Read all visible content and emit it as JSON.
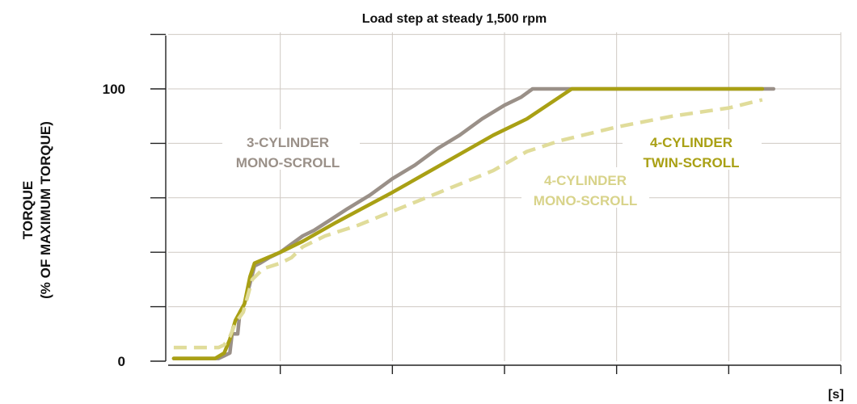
{
  "chart_data": {
    "type": "line",
    "title": "Load step at steady 1,500 rpm",
    "ylabel_lines": [
      "TORQUE",
      "(% OF MAXIMUM TORQUE)"
    ],
    "xlabel": "",
    "x_unit": "[s]",
    "xlim": [
      0,
      6
    ],
    "ylim": [
      0,
      120
    ],
    "yticks": [
      0,
      20,
      40,
      60,
      80,
      100,
      120
    ],
    "ytick_labels": [
      {
        "value": 0,
        "label": "0"
      },
      {
        "value": 100,
        "label": "100"
      }
    ],
    "grid": true,
    "series": [
      {
        "name": "3-CYLINDER MONO-SCROLL",
        "label_lines": [
          "3-CYLINDER",
          "MONO-SCROLL"
        ],
        "color": "#9a9088",
        "style": "solid",
        "points": [
          [
            0.05,
            1
          ],
          [
            0.45,
            1
          ],
          [
            0.5,
            2
          ],
          [
            0.55,
            3
          ],
          [
            0.57,
            10
          ],
          [
            0.62,
            10
          ],
          [
            0.64,
            18
          ],
          [
            0.68,
            21
          ],
          [
            0.72,
            27
          ],
          [
            0.77,
            35
          ],
          [
            0.82,
            36
          ],
          [
            0.9,
            38
          ],
          [
            1.0,
            40
          ],
          [
            1.1,
            43
          ],
          [
            1.2,
            46
          ],
          [
            1.3,
            48
          ],
          [
            1.45,
            52
          ],
          [
            1.6,
            56
          ],
          [
            1.8,
            61
          ],
          [
            2.0,
            67
          ],
          [
            2.2,
            72
          ],
          [
            2.4,
            78
          ],
          [
            2.6,
            83
          ],
          [
            2.8,
            89
          ],
          [
            3.0,
            94
          ],
          [
            3.15,
            97
          ],
          [
            3.25,
            100
          ],
          [
            3.6,
            100
          ],
          [
            5.4,
            100
          ]
        ]
      },
      {
        "name": "4-CYLINDER TWIN-SCROLL",
        "label_lines": [
          "4-CYLINDER",
          "TWIN-SCROLL"
        ],
        "color": "#a9a014",
        "style": "solid",
        "points": [
          [
            0.05,
            1
          ],
          [
            0.42,
            1
          ],
          [
            0.5,
            3
          ],
          [
            0.55,
            8
          ],
          [
            0.6,
            15
          ],
          [
            0.68,
            21
          ],
          [
            0.73,
            31
          ],
          [
            0.77,
            36
          ],
          [
            1.0,
            40
          ],
          [
            1.2,
            44
          ],
          [
            1.5,
            51
          ],
          [
            2.0,
            62
          ],
          [
            2.3,
            69
          ],
          [
            2.6,
            76
          ],
          [
            2.9,
            83
          ],
          [
            3.2,
            89
          ],
          [
            3.6,
            100
          ],
          [
            4.0,
            100
          ],
          [
            5.3,
            100
          ]
        ]
      },
      {
        "name": "4-CYLINDER MONO-SCROLL",
        "label_lines": [
          "4-CYLINDER",
          "MONO-SCROLL"
        ],
        "color": "#e0dc9a",
        "style": "dashed",
        "points": [
          [
            0.05,
            5
          ],
          [
            0.45,
            5
          ],
          [
            0.5,
            6
          ],
          [
            0.55,
            9
          ],
          [
            0.6,
            14
          ],
          [
            0.67,
            18
          ],
          [
            0.75,
            30
          ],
          [
            0.85,
            34
          ],
          [
            1.0,
            36
          ],
          [
            1.1,
            38
          ],
          [
            1.2,
            42
          ],
          [
            1.4,
            46
          ],
          [
            1.7,
            50
          ],
          [
            2.0,
            55
          ],
          [
            2.3,
            60
          ],
          [
            2.6,
            65
          ],
          [
            2.9,
            70
          ],
          [
            3.2,
            77
          ],
          [
            3.5,
            81
          ],
          [
            4.0,
            86
          ],
          [
            4.5,
            90
          ],
          [
            5.0,
            93
          ],
          [
            5.3,
            96
          ]
        ]
      }
    ]
  }
}
